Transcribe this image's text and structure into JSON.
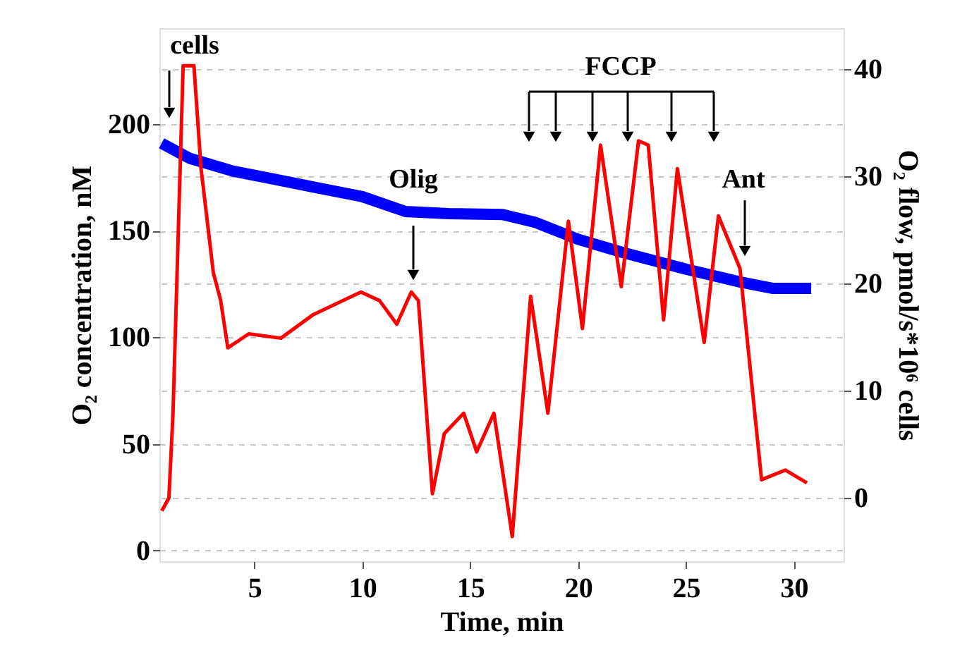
{
  "chart_data": {
    "type": "line",
    "xlabel": "Time, min",
    "ylabel": "O₂ concentration, nM",
    "y2label": "O₂ flow, pmol/s*10⁶ cells",
    "xlim": [
      0.6,
      32.3
    ],
    "xticks": [
      5,
      10,
      15,
      20,
      25,
      30
    ],
    "ylim": [
      -5,
      245
    ],
    "yticks": [
      0,
      50,
      100,
      150,
      200
    ],
    "y2lim": [
      -5.9,
      43.8
    ],
    "y2ticks": [
      0,
      10,
      20,
      30,
      40
    ],
    "grid": "y",
    "series": [
      {
        "color": "#0000ff",
        "axis": "y",
        "x": [
          0.7,
          2,
          4,
          6,
          8,
          10,
          12,
          14,
          16.5,
          18,
          20,
          22,
          25,
          27.5,
          29,
          30.8
        ],
        "values": [
          191,
          184,
          178,
          174,
          170,
          166,
          159,
          158,
          157.6,
          154,
          146,
          140,
          132,
          126,
          123,
          123
        ]
      },
      {
        "color": "#ff0000",
        "axis": "y2",
        "x": [
          0.71,
          1.04,
          1.23,
          1.7,
          2.2,
          2.53,
          3.1,
          3.44,
          3.77,
          4.74,
          6.23,
          7.73,
          9.94,
          10.8,
          11.6,
          12.27,
          12.6,
          13.25,
          13.8,
          14.7,
          15.3,
          16.1,
          16.95,
          17.8,
          18.6,
          19.55,
          20.2,
          21.04,
          22.0,
          22.8,
          23.25,
          23.96,
          24.6,
          25.84,
          26.5,
          27.5,
          28.5,
          29.6,
          30.6
        ],
        "values": [
          -1.2,
          0,
          7.9,
          40.3,
          40.3,
          30.7,
          21,
          18.4,
          14,
          15.3,
          14.9,
          17.1,
          19.2,
          18.4,
          16.2,
          19.2,
          18.4,
          0.4,
          6,
          7.9,
          4.3,
          7.9,
          -3.6,
          18.8,
          7.9,
          25.8,
          15.8,
          32.9,
          19.7,
          33.3,
          32.9,
          16.6,
          30.7,
          14.5,
          26.3,
          21.4,
          1.7,
          2.6,
          1.4
        ]
      }
    ],
    "annotations": [
      "cells",
      "Olig",
      "FCCP",
      "Ant"
    ]
  }
}
